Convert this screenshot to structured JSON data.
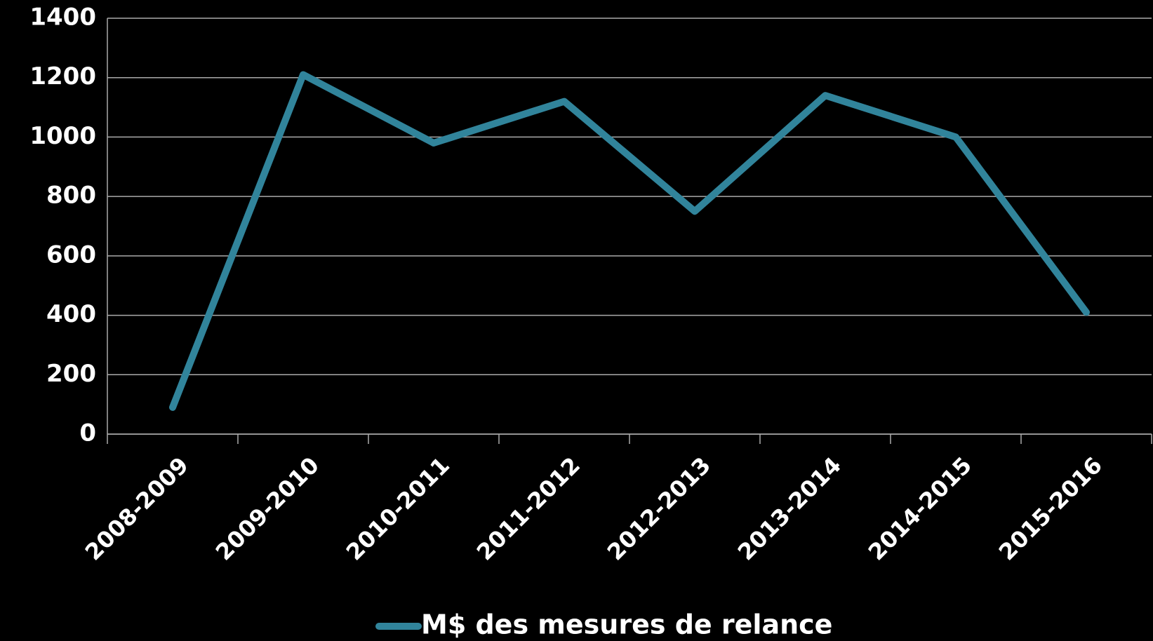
{
  "chart_data": {
    "type": "line",
    "categories": [
      "2008-2009",
      "2009-2010",
      "2010-2011",
      "2011-2012",
      "2012-2013",
      "2013-2014",
      "2014-2015",
      "2015-2016"
    ],
    "series": [
      {
        "name": "M$ des mesures de relance",
        "color": "#31849b",
        "values": [
          90,
          1210,
          980,
          1120,
          750,
          1140,
          1000,
          410
        ]
      }
    ],
    "ylim": [
      0,
      1400
    ],
    "yticks": [
      0,
      200,
      400,
      600,
      800,
      1000,
      1200,
      1400
    ],
    "grid": true,
    "legend": "bottom"
  }
}
